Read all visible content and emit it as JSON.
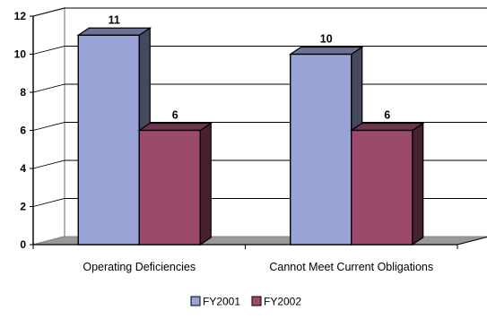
{
  "chart_data": {
    "type": "bar",
    "style": "3d-clustered-column",
    "categories": [
      "Operating Deficiencies",
      "Cannot Meet Current Obligations"
    ],
    "series": [
      {
        "name": "FY2001",
        "values": [
          11,
          10
        ],
        "color": "#99A3D6"
      },
      {
        "name": "FY2002",
        "values": [
          6,
          6
        ],
        "color": "#9C4A6B"
      }
    ],
    "ylim": [
      0,
      12
    ],
    "yticks": [
      0,
      2,
      4,
      6,
      8,
      10,
      12
    ],
    "title": "",
    "xlabel": "",
    "ylabel": "",
    "grid": true,
    "legend_position": "bottom"
  }
}
